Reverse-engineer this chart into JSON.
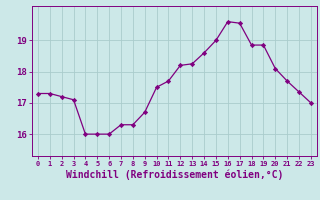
{
  "hours": [
    0,
    1,
    2,
    3,
    4,
    5,
    6,
    7,
    8,
    9,
    10,
    11,
    12,
    13,
    14,
    15,
    16,
    17,
    18,
    19,
    20,
    21,
    22,
    23
  ],
  "values": [
    17.3,
    17.3,
    17.2,
    17.1,
    16.0,
    16.0,
    16.0,
    16.3,
    16.3,
    16.7,
    17.5,
    17.7,
    18.2,
    18.25,
    18.6,
    19.0,
    19.6,
    19.55,
    18.85,
    18.85,
    18.1,
    17.7,
    17.35,
    17.0
  ],
  "line_color": "#800080",
  "marker": "D",
  "marker_size": 2.2,
  "bg_color": "#cce8e8",
  "grid_color": "#aacccc",
  "axis_color": "#800080",
  "tick_color": "#800080",
  "xlabel": "Windchill (Refroidissement éolien,°C)",
  "xlabel_fontsize": 7,
  "ylabel_ticks": [
    16,
    17,
    18,
    19
  ],
  "ylim": [
    15.3,
    20.1
  ],
  "xlim": [
    -0.5,
    23.5
  ]
}
